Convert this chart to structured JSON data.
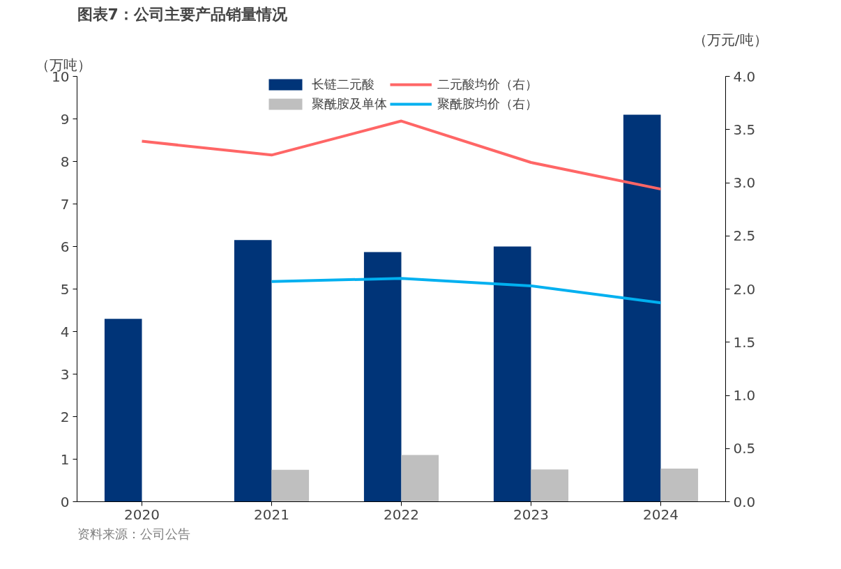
{
  "chart_data": {
    "type": "bar",
    "title": "图表7：公司主要产品销量情况",
    "categories": [
      "2020",
      "2021",
      "2022",
      "2023",
      "2024"
    ],
    "series": [
      {
        "name": "长链二元酸",
        "color": "#003478",
        "values": [
          4.3,
          6.15,
          5.87,
          6.0,
          9.1
        ]
      },
      {
        "name": "聚酰胺及单体",
        "color": "#bfbfbf",
        "values": [
          null,
          0.75,
          1.1,
          0.76,
          0.78
        ]
      },
      {
        "name": "二元酸均价（右）",
        "type": "line",
        "axis": "y2",
        "color": "#ff6666",
        "values": [
          3.39,
          3.26,
          3.58,
          3.19,
          2.94
        ]
      },
      {
        "name": "聚酰胺均价（右）",
        "type": "line",
        "axis": "y2",
        "color": "#00b0f0",
        "values": [
          null,
          2.07,
          2.1,
          2.03,
          1.87
        ]
      }
    ],
    "ylabel": "（万吨）",
    "y2label": "（万元/吨）",
    "ylim": [
      0,
      10
    ],
    "yticks": [
      0,
      1,
      2,
      3,
      4,
      5,
      6,
      7,
      8,
      9,
      10
    ],
    "y2lim": [
      0,
      4
    ],
    "y2ticks": [
      {
        "value": 0,
        "label": "0.0"
      },
      {
        "value": 0.5,
        "label": "0.5"
      },
      {
        "value": 1,
        "label": "1.0"
      },
      {
        "value": 1.5,
        "label": "1.5"
      },
      {
        "value": 2,
        "label": "2.0"
      },
      {
        "value": 2.5,
        "label": "2.5"
      },
      {
        "value": 3,
        "label": "3.0"
      },
      {
        "value": 3.5,
        "label": "3.5"
      },
      {
        "value": 4,
        "label": "4.0"
      }
    ],
    "grid": false,
    "legend": "top",
    "annotations": [
      "资料来源：公司公告"
    ]
  }
}
